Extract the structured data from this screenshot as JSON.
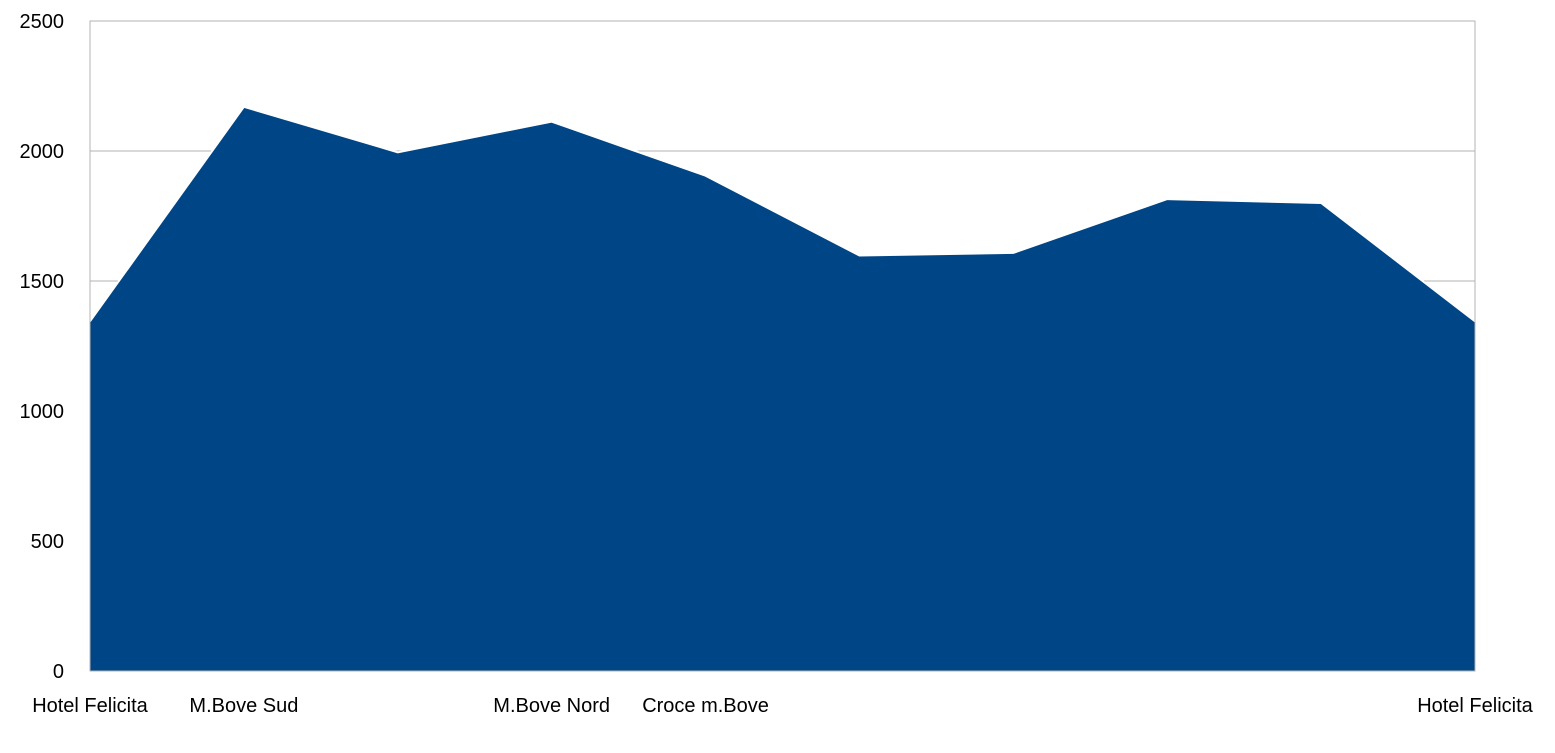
{
  "chart_data": {
    "type": "area",
    "title": "",
    "xlabel": "",
    "ylabel": "",
    "ylim": [
      0,
      2500
    ],
    "yticks": [
      0,
      500,
      1000,
      1500,
      2000,
      2500
    ],
    "grid": true,
    "legend": "none",
    "categories": [
      "Hotel Felicita",
      "M.Bove Sud",
      "",
      "M.Bove Nord",
      "Croce m.Bove",
      "",
      "",
      "",
      "",
      "Hotel Felicita"
    ],
    "series": [
      {
        "values": [
          1345,
          2170,
          1995,
          2113,
          1905,
          1598,
          1608,
          1815,
          1800,
          1345
        ]
      }
    ],
    "colors": {
      "fill": "#004586",
      "grid": "#b3b3b3",
      "axis": "#b3b3b3"
    }
  }
}
